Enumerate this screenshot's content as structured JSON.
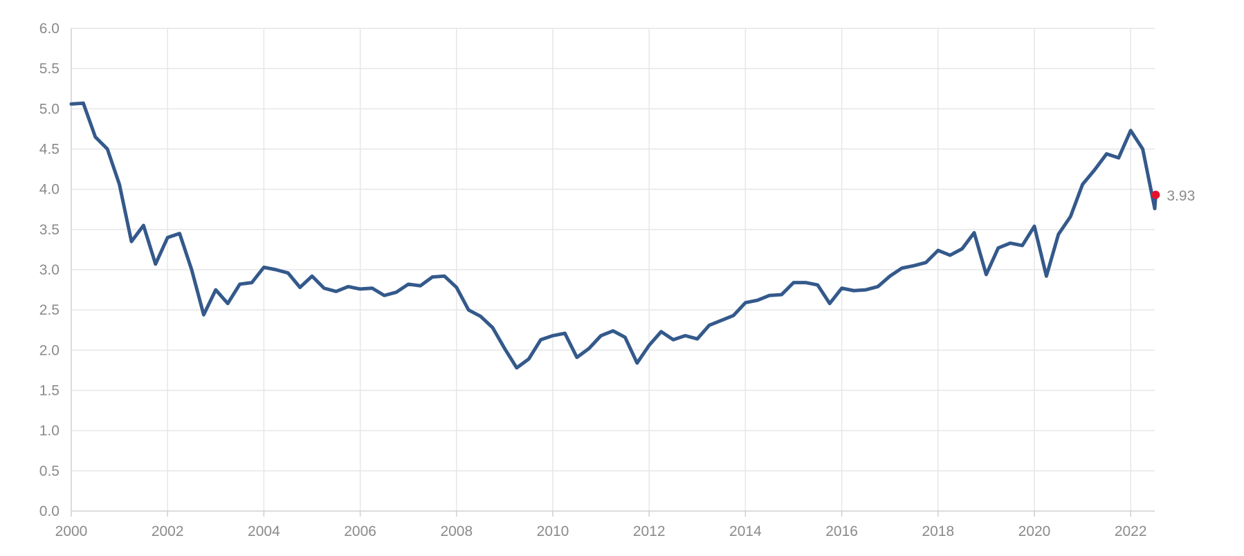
{
  "chart_data": {
    "type": "line",
    "title": "",
    "xlabel": "",
    "ylabel": "",
    "xlim": [
      2000,
      2022.5
    ],
    "ylim": [
      0,
      6
    ],
    "grid": true,
    "x_ticks": [
      "2000",
      "2002",
      "2004",
      "2006",
      "2008",
      "2010",
      "2012",
      "2014",
      "2016",
      "2018",
      "2020",
      "2022"
    ],
    "y_ticks": [
      "0.0",
      "0.5",
      "1.0",
      "1.5",
      "2.0",
      "2.5",
      "3.0",
      "3.5",
      "4.0",
      "4.5",
      "5.0",
      "5.5",
      "6.0"
    ],
    "series": [
      {
        "color": "#34598b",
        "points": [
          [
            2000.0,
            5.06
          ],
          [
            2000.25,
            5.07
          ],
          [
            2000.5,
            4.65
          ],
          [
            2000.75,
            4.5
          ],
          [
            2001.0,
            4.06
          ],
          [
            2001.25,
            3.35
          ],
          [
            2001.5,
            3.55
          ],
          [
            2001.75,
            3.07
          ],
          [
            2002.0,
            3.4
          ],
          [
            2002.25,
            3.45
          ],
          [
            2002.5,
            3.0
          ],
          [
            2002.75,
            2.44
          ],
          [
            2003.0,
            2.75
          ],
          [
            2003.25,
            2.58
          ],
          [
            2003.5,
            2.82
          ],
          [
            2003.75,
            2.84
          ],
          [
            2004.0,
            3.03
          ],
          [
            2004.25,
            3.0
          ],
          [
            2004.5,
            2.96
          ],
          [
            2004.75,
            2.78
          ],
          [
            2005.0,
            2.92
          ],
          [
            2005.25,
            2.77
          ],
          [
            2005.5,
            2.73
          ],
          [
            2005.75,
            2.79
          ],
          [
            2006.0,
            2.76
          ],
          [
            2006.25,
            2.77
          ],
          [
            2006.5,
            2.68
          ],
          [
            2006.75,
            2.72
          ],
          [
            2007.0,
            2.82
          ],
          [
            2007.25,
            2.8
          ],
          [
            2007.5,
            2.91
          ],
          [
            2007.75,
            2.92
          ],
          [
            2008.0,
            2.78
          ],
          [
            2008.25,
            2.5
          ],
          [
            2008.5,
            2.42
          ],
          [
            2008.75,
            2.28
          ],
          [
            2009.0,
            2.02
          ],
          [
            2009.25,
            1.78
          ],
          [
            2009.5,
            1.89
          ],
          [
            2009.75,
            2.13
          ],
          [
            2010.0,
            2.18
          ],
          [
            2010.25,
            2.21
          ],
          [
            2010.5,
            1.91
          ],
          [
            2010.75,
            2.02
          ],
          [
            2011.0,
            2.18
          ],
          [
            2011.25,
            2.24
          ],
          [
            2011.5,
            2.16
          ],
          [
            2011.75,
            1.84
          ],
          [
            2012.0,
            2.06
          ],
          [
            2012.25,
            2.23
          ],
          [
            2012.5,
            2.13
          ],
          [
            2012.75,
            2.18
          ],
          [
            2013.0,
            2.14
          ],
          [
            2013.25,
            2.31
          ],
          [
            2013.5,
            2.37
          ],
          [
            2013.75,
            2.43
          ],
          [
            2014.0,
            2.59
          ],
          [
            2014.25,
            2.62
          ],
          [
            2014.5,
            2.68
          ],
          [
            2014.75,
            2.69
          ],
          [
            2015.0,
            2.84
          ],
          [
            2015.25,
            2.84
          ],
          [
            2015.5,
            2.81
          ],
          [
            2015.75,
            2.58
          ],
          [
            2016.0,
            2.77
          ],
          [
            2016.25,
            2.74
          ],
          [
            2016.5,
            2.75
          ],
          [
            2016.75,
            2.79
          ],
          [
            2017.0,
            2.92
          ],
          [
            2017.25,
            3.02
          ],
          [
            2017.5,
            3.05
          ],
          [
            2017.75,
            3.09
          ],
          [
            2018.0,
            3.24
          ],
          [
            2018.25,
            3.18
          ],
          [
            2018.5,
            3.26
          ],
          [
            2018.75,
            3.46
          ],
          [
            2019.0,
            2.94
          ],
          [
            2019.25,
            3.27
          ],
          [
            2019.5,
            3.33
          ],
          [
            2019.75,
            3.3
          ],
          [
            2020.0,
            3.54
          ],
          [
            2020.25,
            2.92
          ],
          [
            2020.5,
            3.44
          ],
          [
            2020.75,
            3.66
          ],
          [
            2021.0,
            4.06
          ],
          [
            2021.25,
            4.24
          ],
          [
            2021.5,
            4.44
          ],
          [
            2021.75,
            4.39
          ],
          [
            2022.0,
            4.73
          ],
          [
            2022.25,
            4.5
          ],
          [
            2022.5,
            3.76
          ],
          [
            2022.52,
            3.93
          ]
        ]
      }
    ],
    "last_point": {
      "x": 2022.52,
      "y": 3.93,
      "label": "3.93",
      "color": "#e8112d"
    }
  }
}
